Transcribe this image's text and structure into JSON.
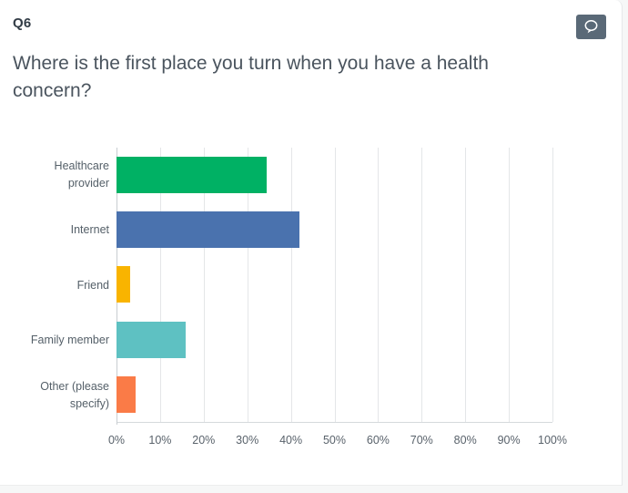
{
  "page": {
    "background_color": "#f6f7f7",
    "card_background_color": "#ffffff"
  },
  "header": {
    "question_number": "Q6",
    "question_text": "Where is the first place you turn when you have a health concern?",
    "comment_button_color": "#5a6977"
  },
  "chart_data": {
    "type": "bar",
    "orientation": "horizontal",
    "title": "",
    "xlabel": "",
    "ylabel": "",
    "categories": [
      "Healthcare provider",
      "Internet",
      "Friend",
      "Family member",
      "Other (please specify)"
    ],
    "values": [
      34.4,
      42.0,
      3.1,
      15.9,
      4.4
    ],
    "unit": "%",
    "colors": [
      "#00b164",
      "#4a72ae",
      "#f9b400",
      "#5ec1c2",
      "#fa7b47"
    ],
    "xlim": [
      0,
      100
    ],
    "xticks": [
      "0%",
      "10%",
      "20%",
      "30%",
      "40%",
      "50%",
      "60%",
      "70%",
      "80%",
      "90%",
      "100%"
    ],
    "grid": "vertical",
    "legend": "none"
  }
}
